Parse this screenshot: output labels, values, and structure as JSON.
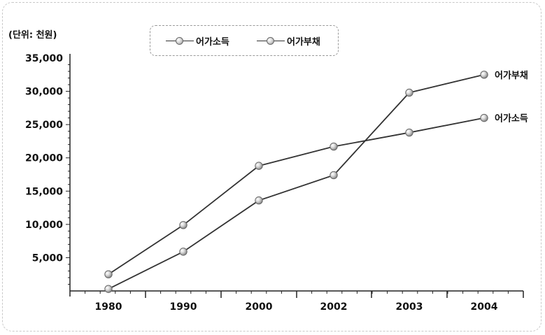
{
  "chart_data": {
    "type": "line",
    "unit_label": "(단위: 천원)",
    "categories": [
      "1980",
      "1990",
      "2000",
      "2002",
      "2003",
      "2004"
    ],
    "series": [
      {
        "name": "어가소득",
        "values": [
          2500,
          9900,
          18800,
          21700,
          23800,
          26000
        ],
        "end_label": "어가소득"
      },
      {
        "name": "어가부채",
        "values": [
          300,
          5900,
          13600,
          17400,
          29800,
          32500
        ],
        "end_label": "어가부채"
      }
    ],
    "yticks": [
      "5,000",
      "10,000",
      "15,000",
      "20,000",
      "25,000",
      "30,000",
      "35,000"
    ],
    "ylim": [
      0,
      35000
    ],
    "legend": [
      "어가소득",
      "어가부채"
    ],
    "legend_position": "top-center",
    "grid": false
  }
}
